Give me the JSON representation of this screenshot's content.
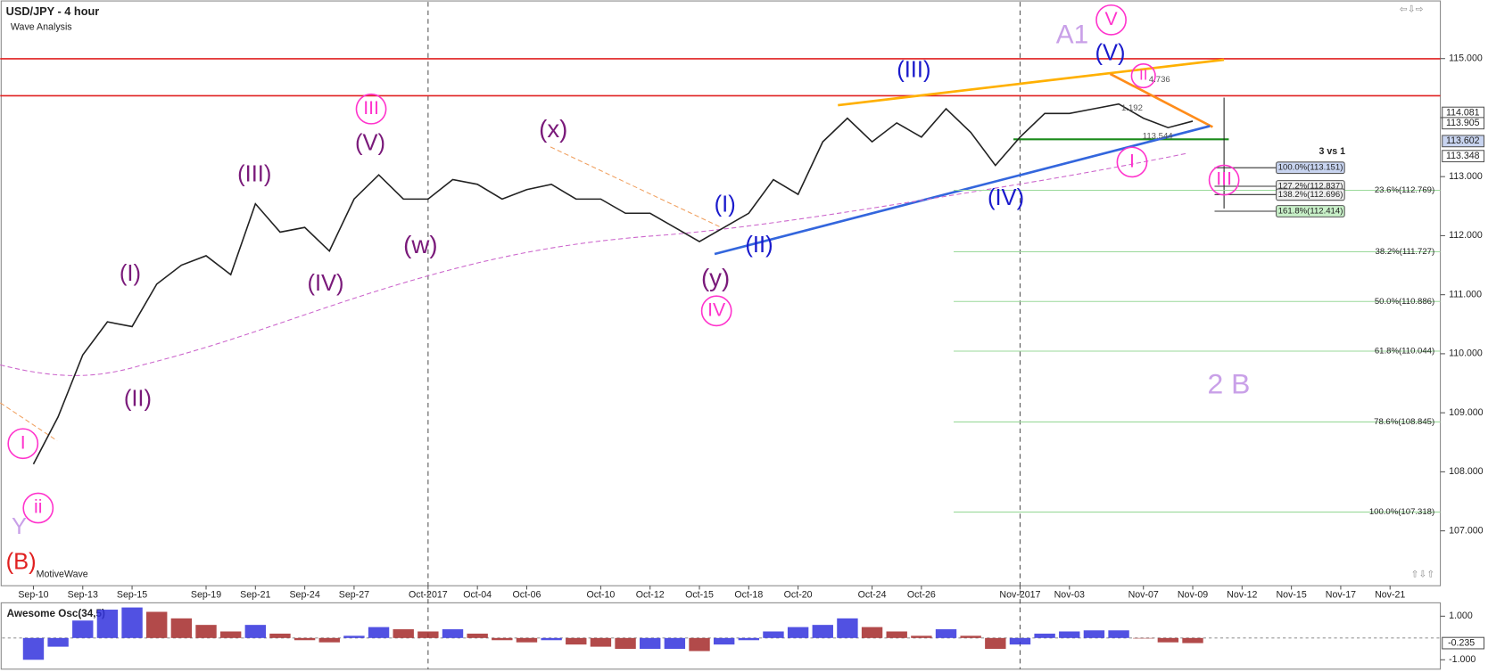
{
  "chart_data": [
    {
      "type": "line",
      "title": "USD/JPY - 4 hour",
      "subtitle": "Wave Analysis",
      "watermark": "MotiveWave",
      "categories": [
        "Sep-10",
        null,
        "Sep-13",
        null,
        "Sep-15",
        null,
        null,
        "Sep-19",
        null,
        "Sep-21",
        null,
        "Sep-24",
        null,
        "Sep-27",
        null,
        null,
        "Oct-2017",
        null,
        "Oct-04",
        null,
        "Oct-06",
        null,
        null,
        "Oct-10",
        null,
        "Oct-12",
        null,
        "Oct-15",
        null,
        "Oct-18",
        null,
        "Oct-20",
        null,
        null,
        "Oct-24",
        null,
        "Oct-26",
        null,
        null,
        null,
        "Nov-2017",
        null,
        "Nov-03",
        null,
        null,
        "Nov-07",
        null,
        "Nov-09",
        null,
        "Nov-12",
        null,
        "Nov-15",
        null,
        "Nov-17",
        null,
        "Nov-21",
        null
      ],
      "series": [
        {
          "name": "USD/JPY",
          "color": "#222222",
          "values": [
            108.13,
            108.93,
            109.98,
            110.54,
            110.46,
            111.18,
            111.5,
            111.66,
            111.34,
            112.54,
            112.06,
            112.14,
            111.74,
            112.62,
            113.03,
            112.62,
            112.62,
            112.95,
            112.87,
            112.62,
            112.78,
            112.87,
            112.62,
            112.62,
            112.38,
            112.38,
            112.14,
            111.9,
            112.14,
            112.38,
            112.95,
            112.7,
            113.59,
            113.99,
            113.59,
            113.91,
            113.67,
            114.15,
            113.75,
            113.19,
            113.67,
            114.07,
            114.07,
            114.15,
            114.23,
            113.99,
            113.83,
            113.94,
            null,
            null,
            null,
            null,
            null,
            null,
            null,
            null,
            null
          ]
        }
      ],
      "ylim": [
        106.07,
        115.96
      ],
      "yticks": [
        {
          "value": 107,
          "label": "107.000"
        },
        {
          "value": 108,
          "label": "108.000"
        },
        {
          "value": 109,
          "label": "109.000"
        },
        {
          "value": 110,
          "label": "110.000"
        },
        {
          "value": 111,
          "label": "111.000"
        },
        {
          "value": 112,
          "label": "112.000"
        },
        {
          "value": 113,
          "label": "113.000"
        },
        {
          "value": 114,
          "label": "114.000"
        },
        {
          "value": 115,
          "label": "115.000"
        }
      ],
      "price_markers": [
        114.081,
        113.905,
        113.602,
        113.348
      ],
      "fib_retracements": [
        {
          "value": 112.769,
          "label": "23.6%(112.769)"
        },
        {
          "value": 111.727,
          "label": "38.2%(111.727)"
        },
        {
          "value": 110.886,
          "label": "50.0%(110.886)"
        },
        {
          "value": 110.044,
          "label": "61.8%(110.044)"
        },
        {
          "value": 108.845,
          "label": "78.6%(108.845)"
        },
        {
          "value": 107.318,
          "label": "100.0%(107.318)"
        }
      ],
      "fib_extensions_title": "3 vs 1",
      "fib_extensions": [
        {
          "value": 113.151,
          "label": "100.0%(113.151)"
        },
        {
          "value": 112.837,
          "label": "127.2%(112.837)"
        },
        {
          "value": 112.696,
          "label": "138.2%(112.696)"
        },
        {
          "value": 112.414,
          "label": "161.8%(112.414)"
        }
      ],
      "annotations": [
        "A1",
        "V",
        "(V)",
        "(III)",
        "III",
        "(V)",
        "(III)",
        "(x)",
        "(I)",
        "(II)",
        "(IV)",
        "(w)",
        "(I)",
        "(II)",
        "(y)",
        "IV",
        "(IV)",
        "I",
        "III",
        "II",
        "I",
        "ii",
        "Y",
        "(B)",
        "2 B",
        "1.192",
        "113.544",
        "4.736"
      ]
    },
    {
      "type": "bar",
      "title": "Awesome Osc(34,5)",
      "series": [
        {
          "name": "Awesome Osc",
          "values": [
            -1.0,
            -0.4,
            0.8,
            1.3,
            1.4,
            1.2,
            0.9,
            0.6,
            0.3,
            0.6,
            0.2,
            -0.1,
            -0.2,
            0.1,
            0.5,
            0.4,
            0.3,
            0.4,
            0.2,
            -0.1,
            -0.2,
            -0.1,
            -0.3,
            -0.4,
            -0.5,
            -0.5,
            -0.5,
            -0.6,
            -0.3,
            -0.1,
            0.3,
            0.5,
            0.6,
            0.9,
            0.5,
            0.3,
            0.1,
            0.4,
            0.1,
            -0.5,
            -0.3,
            0.2,
            0.3,
            0.35,
            0.35,
            0.0,
            -0.2,
            -0.235,
            null,
            null,
            null,
            null,
            null,
            null,
            null,
            null,
            null
          ]
        }
      ],
      "colors": [
        "#3333dd",
        "#a52a2a"
      ],
      "ylim": [
        -1.43,
        1.57
      ],
      "yticks": [
        {
          "value": -1,
          "label": "-1.000"
        },
        {
          "value": 1,
          "label": "1.000"
        }
      ],
      "current_value": -0.235
    }
  ]
}
